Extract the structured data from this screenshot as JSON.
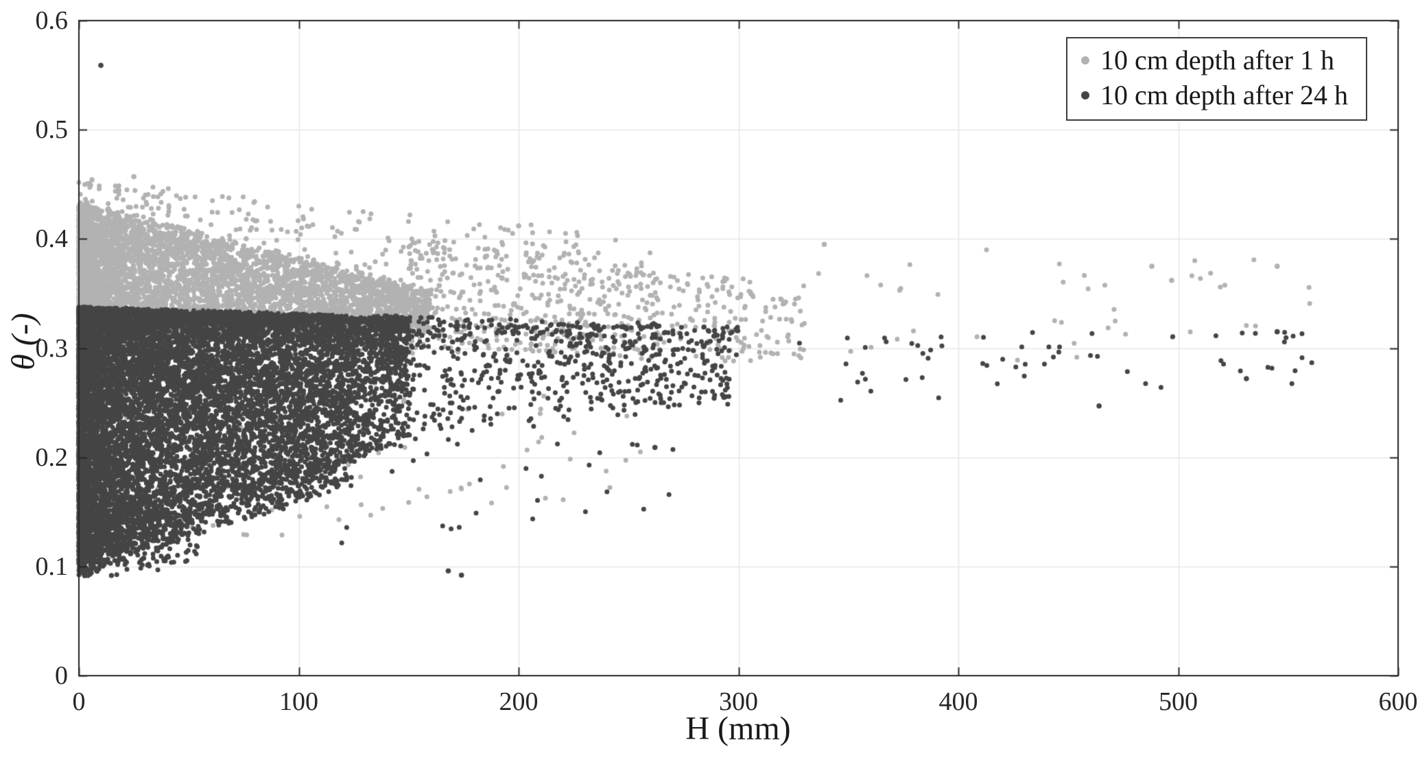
{
  "chart_data": {
    "type": "scatter",
    "title": "",
    "xlabel": "H (mm)",
    "ylabel": "θ (-)",
    "xlim": [
      0,
      600
    ],
    "ylim": [
      0,
      0.6
    ],
    "xticks": [
      0,
      100,
      200,
      300,
      400,
      500,
      600
    ],
    "xtick_labels": [
      "0",
      "100",
      "200",
      "300",
      "400",
      "500",
      "600"
    ],
    "yticks": [
      0,
      0.1,
      0.2,
      0.3,
      0.4,
      0.5,
      0.6
    ],
    "ytick_labels": [
      "0",
      "0.1",
      "0.2",
      "0.3",
      "0.4",
      "0.5",
      "0.6"
    ],
    "grid": true,
    "grid_color": "#e7e7e7",
    "axis_color": "#262626",
    "background": "#ffffff",
    "legend_position": "top-right",
    "seed": 42,
    "note": "Dense scatter of soil volumetric water content θ versus water depth H. The 1 h series forms a light-gray cloud between θ≈0.30 and θ≈0.44 at low H, narrowing toward θ≈0.30-0.38 as H grows. The 24 h series forms a very dense dark wedge from θ≈0.09 up to a sharp edge at θ≈0.33 at low H, with its lower envelope rising with H so points converge toward θ≈0.25-0.32 beyond H≈250 mm. Sparse points of both series extend to H≈545 mm. A dark outlier sits near (10, 0.56) and a low pair near (170, 0.095).",
    "series": [
      {
        "name": "10 cm depth after 1 h",
        "color": "#b2b2b2",
        "marker_radius": 3.5,
        "clusters": [
          {
            "n": 5200,
            "x0": 0,
            "x1": 160,
            "xpow": 2.0,
            "yTop0": 0.432,
            "yTop1": 0.352,
            "yBot0": 0.305,
            "yBot1": 0.318,
            "ypow": 1.0
          },
          {
            "n": 700,
            "x0": 0,
            "x1": 260,
            "xpow": 1.6,
            "yTop0": 0.455,
            "yTop1": 0.4,
            "yBot0": 0.29,
            "yBot1": 0.3,
            "ypow": 1.0
          },
          {
            "n": 420,
            "x0": 150,
            "x1": 330,
            "xpow": 1.15,
            "yTop0": 0.405,
            "yTop1": 0.355,
            "yBot0": 0.295,
            "yBot1": 0.288,
            "ypow": 1.0
          },
          {
            "n": 46,
            "x0": 300,
            "x1": 560,
            "xpow": 1.0,
            "yTop0": 0.4,
            "yTop1": 0.378,
            "yBot0": 0.282,
            "yBot1": 0.29,
            "ypow": 1.0
          },
          {
            "n": 85,
            "x0": 15,
            "x1": 265,
            "xpow": 1.4,
            "yTop0": 0.3,
            "yTop1": 0.26,
            "yBot0": 0.105,
            "yBot1": 0.17,
            "ypow": 0.75
          }
        ],
        "outliers": [
          [
            25,
            0.457
          ],
          [
            200,
            0.412
          ],
          [
            339,
            0.395
          ],
          [
            488,
            0.375
          ],
          [
            497,
            0.362
          ],
          [
            545,
            0.375
          ]
        ]
      },
      {
        "name": "10 cm depth after 24 h",
        "color": "#454545",
        "marker_radius": 3.5,
        "clusters": [
          {
            "n": 9500,
            "x0": 0,
            "x1": 150,
            "xpow": 2.2,
            "yTop0": 0.335,
            "yTop1": 0.326,
            "yBot0": 0.1,
            "yBot1": 0.215,
            "ypow": 2.0
          },
          {
            "n": 2600,
            "x0": 0,
            "x1": 125,
            "xpow": 1.7,
            "yTop0": 0.305,
            "yTop1": 0.285,
            "yBot0": 0.092,
            "yBot1": 0.175,
            "ypow": 1.0
          },
          {
            "n": 300,
            "x0": 0,
            "x1": 55,
            "xpow": 1.4,
            "yTop0": 0.15,
            "yTop1": 0.16,
            "yBot0": 0.088,
            "yBot1": 0.105,
            "ypow": 1.0
          },
          {
            "n": 650,
            "x0": 140,
            "x1": 300,
            "xpow": 1.1,
            "yTop0": 0.328,
            "yTop1": 0.318,
            "yBot0": 0.215,
            "yBot1": 0.25,
            "ypow": 1.5
          },
          {
            "n": 60,
            "x0": 300,
            "x1": 565,
            "xpow": 1.0,
            "yTop0": 0.318,
            "yTop1": 0.316,
            "yBot0": 0.248,
            "yBot1": 0.27,
            "ypow": 1.0
          },
          {
            "n": 26,
            "x0": 115,
            "x1": 272,
            "xpow": 1.0,
            "yTop0": 0.225,
            "yTop1": 0.215,
            "yBot0": 0.115,
            "yBot1": 0.155,
            "ypow": 1.0
          }
        ],
        "outliers": [
          [
            10,
            0.559
          ],
          [
            168,
            0.096
          ],
          [
            174,
            0.092
          ],
          [
            262,
            0.209
          ],
          [
            464,
            0.247
          ],
          [
            531,
            0.272
          ],
          [
            545,
            0.315
          ]
        ]
      }
    ]
  },
  "legend": {
    "entries": [
      {
        "label": "10 cm depth after 1 h"
      },
      {
        "label": "10 cm depth after 24 h"
      }
    ]
  }
}
